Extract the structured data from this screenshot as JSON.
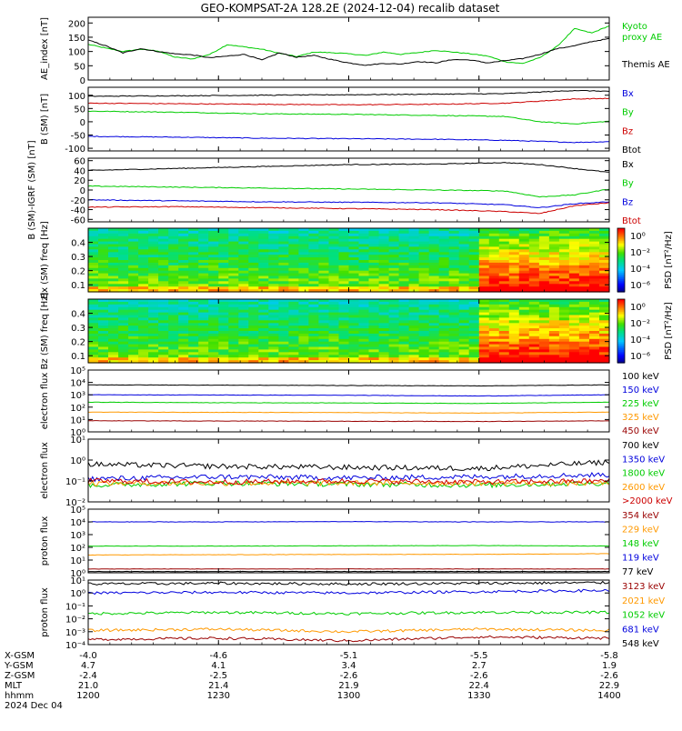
{
  "title": "GEO-KOMPSAT-2A 128.2E (2024-12-04) recalib dataset",
  "colors": {
    "black": "#000000",
    "red": "#cc0000",
    "green": "#00cc00",
    "blue": "#0000dd",
    "orange": "#ff9900",
    "darkred": "#990000",
    "cyan": "#00aaaa"
  },
  "chart_data": [
    {
      "type": "line",
      "ylabel": "AE_index [nT]",
      "ylim": [
        0,
        220
      ],
      "yticks": [
        "200",
        "150",
        "100",
        "50",
        "0"
      ],
      "ytick_values": [
        200,
        150,
        100,
        50,
        0
      ],
      "log": false,
      "series": [
        {
          "name": "Kyoto proxy AE",
          "color": "#00cc00",
          "name_lines": [
            "Kyoto",
            "proxy AE"
          ],
          "x": [
            0,
            4,
            8,
            12,
            16,
            20,
            24,
            28,
            32,
            36,
            40,
            44,
            48,
            52,
            56,
            60,
            64,
            68,
            72,
            76,
            80,
            84,
            88,
            92,
            96,
            100,
            104,
            108,
            112,
            116,
            120
          ],
          "values": [
            125,
            112,
            100,
            108,
            102,
            80,
            74,
            90,
            124,
            116,
            108,
            94,
            82,
            98,
            96,
            92,
            86,
            98,
            90,
            96,
            104,
            98,
            92,
            84,
            64,
            58,
            78,
            118,
            180,
            165,
            190
          ]
        },
        {
          "name": "Themis AE",
          "color": "#000000",
          "name_lines": [
            "Themis AE"
          ],
          "x": [
            0,
            4,
            8,
            12,
            16,
            20,
            24,
            28,
            32,
            36,
            40,
            44,
            48,
            52,
            56,
            60,
            64,
            68,
            72,
            76,
            80,
            84,
            88,
            92,
            96,
            100,
            104,
            108,
            112,
            116,
            120
          ],
          "values": [
            140,
            120,
            95,
            110,
            100,
            92,
            88,
            78,
            84,
            90,
            70,
            95,
            80,
            86,
            72,
            60,
            52,
            58,
            56,
            65,
            60,
            72,
            70,
            60,
            68,
            75,
            90,
            110,
            120,
            135,
            145
          ]
        }
      ]
    },
    {
      "type": "line",
      "ylabel": "B (SM) [nT]",
      "ylim": [
        -110,
        130
      ],
      "yticks": [
        "100",
        "50",
        "0",
        "-50",
        "-100"
      ],
      "ytick_values": [
        100,
        50,
        0,
        -50,
        -100
      ],
      "log": false,
      "series": [
        {
          "name": "Bx",
          "color": "#0000dd",
          "x": [
            0,
            20,
            40,
            60,
            80,
            96,
            104,
            112,
            120
          ],
          "values": [
            -55,
            -58,
            -62,
            -64,
            -66,
            -70,
            -74,
            -78,
            -75
          ]
        },
        {
          "name": "By",
          "color": "#00cc00",
          "x": [
            0,
            20,
            40,
            60,
            80,
            96,
            104,
            112,
            120
          ],
          "values": [
            40,
            36,
            30,
            28,
            24,
            20,
            0,
            -8,
            2
          ]
        },
        {
          "name": "Bz",
          "color": "#cc0000",
          "x": [
            0,
            20,
            40,
            60,
            80,
            96,
            104,
            112,
            120
          ],
          "values": [
            70,
            68,
            66,
            64,
            66,
            70,
            78,
            86,
            88
          ]
        },
        {
          "name": "Btot",
          "color": "#000000",
          "x": [
            0,
            20,
            40,
            60,
            80,
            96,
            104,
            112,
            120
          ],
          "values": [
            96,
            98,
            100,
            102,
            104,
            106,
            112,
            118,
            115
          ]
        }
      ]
    },
    {
      "type": "line",
      "ylabel": "B (SM)-IGRF (SM) [nT]",
      "ylim": [
        -65,
        65
      ],
      "yticks": [
        "60",
        "40",
        "20",
        "0",
        "-20",
        "-40",
        "-60"
      ],
      "ytick_values": [
        60,
        40,
        20,
        0,
        -20,
        -40,
        -60
      ],
      "log": false,
      "series": [
        {
          "name": "Bx",
          "color": "#000000",
          "x": [
            0,
            20,
            40,
            60,
            80,
            96,
            104,
            112,
            120
          ],
          "values": [
            40,
            44,
            48,
            52,
            53,
            56,
            52,
            44,
            36
          ]
        },
        {
          "name": "By",
          "color": "#00cc00",
          "x": [
            0,
            20,
            40,
            60,
            80,
            96,
            104,
            112,
            120
          ],
          "values": [
            8,
            6,
            4,
            2,
            0,
            -2,
            -14,
            -10,
            2
          ]
        },
        {
          "name": "Bz",
          "color": "#0000dd",
          "x": [
            0,
            20,
            40,
            60,
            80,
            96,
            104,
            112,
            120
          ],
          "values": [
            -20,
            -22,
            -24,
            -25,
            -26,
            -30,
            -36,
            -28,
            -24
          ]
        },
        {
          "name": "Btot",
          "color": "#cc0000",
          "x": [
            0,
            20,
            40,
            60,
            80,
            96,
            104,
            112,
            120
          ],
          "values": [
            -35,
            -34,
            -36,
            -38,
            -40,
            -44,
            -48,
            -32,
            -26
          ]
        }
      ]
    },
    {
      "type": "heatmap",
      "ylabel": "Bx (SM) freq [Hz]",
      "yticks": [
        "0.4",
        "0.3",
        "0.2",
        "0.1"
      ],
      "ytick_values": [
        0.4,
        0.3,
        0.2,
        0.1
      ],
      "ylim": [
        0.05,
        0.5
      ],
      "colorbar_label": "PSD [nT²/Hz]",
      "colorbar_ticks": [
        "10⁰",
        "10⁻²",
        "10⁻⁴",
        "10⁻⁶"
      ]
    },
    {
      "type": "heatmap",
      "ylabel": "Bz (SM) freq [Hz]",
      "yticks": [
        "0.4",
        "0.3",
        "0.2",
        "0.1"
      ],
      "ytick_values": [
        0.4,
        0.3,
        0.2,
        0.1
      ],
      "ylim": [
        0.05,
        0.5
      ],
      "colorbar_label": "PSD [nT²/Hz]",
      "colorbar_ticks": [
        "10⁰",
        "10⁻²",
        "10⁻⁴",
        "10⁻⁶"
      ]
    },
    {
      "type": "line",
      "ylabel": "electron flux",
      "log": true,
      "ylim_log": [
        0,
        5
      ],
      "yticks": [
        "10⁵",
        "10⁴",
        "10³",
        "10²",
        "10¹",
        "10⁰"
      ],
      "ytick_values": [
        5,
        4,
        3,
        2,
        1,
        0
      ],
      "series": [
        {
          "name": "100 keV",
          "color": "#000000",
          "x": [
            0,
            30,
            60,
            90,
            120
          ],
          "values": [
            3.8,
            3.78,
            3.75,
            3.72,
            3.8
          ]
        },
        {
          "name": "150 keV",
          "color": "#0000dd",
          "x": [
            0,
            30,
            60,
            90,
            120
          ],
          "values": [
            3.0,
            2.98,
            2.96,
            2.9,
            3.0
          ]
        },
        {
          "name": "225 keV",
          "color": "#00cc00",
          "x": [
            0,
            30,
            60,
            90,
            120
          ],
          "values": [
            2.4,
            2.36,
            2.34,
            2.3,
            2.4
          ]
        },
        {
          "name": "325 keV",
          "color": "#ff9900",
          "x": [
            0,
            30,
            60,
            90,
            120
          ],
          "values": [
            1.6,
            1.58,
            1.56,
            1.52,
            1.6
          ]
        },
        {
          "name": "450 keV",
          "color": "#990000",
          "x": [
            0,
            30,
            60,
            90,
            120
          ],
          "values": [
            0.9,
            0.88,
            0.86,
            0.84,
            0.9
          ]
        }
      ]
    },
    {
      "type": "line",
      "ylabel": "electron flux",
      "log": true,
      "ylim_log": [
        -2,
        1
      ],
      "yticks": [
        "10¹",
        "10⁰",
        "10⁻¹",
        "10⁻²"
      ],
      "ytick_values": [
        1,
        0,
        -1,
        -2
      ],
      "series": [
        {
          "name": "700 keV",
          "color": "#000000",
          "x": [
            0,
            30,
            60,
            90,
            120
          ],
          "values": [
            -0.2,
            -0.3,
            -0.35,
            -0.4,
            -0.1
          ]
        },
        {
          "name": "1350 keV",
          "color": "#0000dd",
          "x": [
            0,
            30,
            60,
            90,
            120
          ],
          "values": [
            -0.9,
            -0.8,
            -0.85,
            -0.8,
            -0.7
          ]
        },
        {
          "name": "1800 keV",
          "color": "#00cc00",
          "x": [
            0,
            30,
            60,
            90,
            120
          ],
          "values": [
            -1.2,
            -1.1,
            -1.15,
            -1.2,
            -1.1
          ]
        },
        {
          "name": "2600 keV",
          "color": "#ff9900",
          "x": [
            0,
            30,
            60,
            90,
            120
          ],
          "values": [
            -1.1,
            -1.1,
            -1.1,
            -1.1,
            -1.1
          ]
        },
        {
          "name": ">2000 keV",
          "color": "#cc0000",
          "x": [
            0,
            30,
            60,
            90,
            120
          ],
          "values": [
            -1.0,
            -1.05,
            -1.0,
            -1.05,
            -1.0
          ]
        }
      ]
    },
    {
      "type": "line",
      "ylabel": "proton flux",
      "log": true,
      "ylim_log": [
        0,
        5
      ],
      "yticks": [
        "10⁵",
        "10⁴",
        "10³",
        "10²",
        "10¹",
        "10⁰"
      ],
      "ytick_values": [
        5,
        4,
        3,
        2,
        1,
        0
      ],
      "series": [
        {
          "name": "354 keV",
          "color": "#990000",
          "x": [
            0,
            30,
            60,
            90,
            120
          ],
          "values": [
            0.3,
            0.3,
            0.3,
            0.3,
            0.3
          ]
        },
        {
          "name": "229 keV",
          "color": "#ff9900",
          "x": [
            0,
            30,
            60,
            90,
            120
          ],
          "values": [
            1.4,
            1.42,
            1.44,
            1.45,
            1.5
          ]
        },
        {
          "name": "148 keV",
          "color": "#00cc00",
          "x": [
            0,
            30,
            60,
            90,
            120
          ],
          "values": [
            2.1,
            2.1,
            2.12,
            2.14,
            2.1
          ]
        },
        {
          "name": "119 keV",
          "color": "#0000dd",
          "x": [
            0,
            30,
            60,
            90,
            120
          ],
          "values": [
            4.0,
            4.0,
            4.02,
            4.0,
            4.0
          ]
        },
        {
          "name": "77 keV",
          "color": "#000000",
          "x": [
            0,
            30,
            60,
            90,
            120
          ],
          "values": [
            0.1,
            0.1,
            0.1,
            0.1,
            0.1
          ]
        }
      ]
    },
    {
      "type": "line",
      "ylabel": "proton flux",
      "log": true,
      "ylim_log": [
        -4,
        1
      ],
      "yticks": [
        "10¹",
        "10⁰",
        "10⁻¹",
        "10⁻²",
        "10⁻³",
        "10⁻⁴"
      ],
      "ytick_values": [
        1,
        0,
        -1,
        -2,
        -3,
        -4
      ],
      "series": [
        {
          "name": "3123 keV",
          "color": "#990000",
          "x": [
            0,
            30,
            60,
            90,
            120
          ],
          "values": [
            -3.6,
            -3.5,
            -3.7,
            -3.4,
            -3.5
          ]
        },
        {
          "name": "2021 keV",
          "color": "#ff9900",
          "x": [
            0,
            30,
            60,
            90,
            120
          ],
          "values": [
            -2.9,
            -2.8,
            -3.0,
            -2.8,
            -2.9
          ]
        },
        {
          "name": "1052 keV",
          "color": "#00cc00",
          "x": [
            0,
            30,
            60,
            90,
            120
          ],
          "values": [
            -1.6,
            -1.5,
            -1.6,
            -1.5,
            -1.5
          ]
        },
        {
          "name": "681 keV",
          "color": "#0000dd",
          "x": [
            0,
            30,
            60,
            90,
            120
          ],
          "values": [
            0.0,
            0.05,
            0.0,
            0.1,
            0.2
          ]
        },
        {
          "name": "548 keV",
          "color": "#000000",
          "x": [
            0,
            30,
            60,
            90,
            120
          ],
          "values": [
            0.7,
            0.75,
            0.7,
            0.75,
            0.8
          ]
        }
      ]
    }
  ],
  "xaxis": {
    "row_labels": [
      "X-GSM",
      "Y-GSM",
      "Z-GSM",
      "MLT",
      "hhmm",
      "2024 Dec 04"
    ],
    "columns": [
      {
        "x": 0,
        "values": [
          "-4.0",
          "4.7",
          "-2.4",
          "21.0",
          "1200"
        ]
      },
      {
        "x": 30,
        "values": [
          "-4.6",
          "4.1",
          "-2.5",
          "21.4",
          "1230"
        ]
      },
      {
        "x": 60,
        "values": [
          "-5.1",
          "3.4",
          "-2.6",
          "21.9",
          "1300"
        ]
      },
      {
        "x": 90,
        "values": [
          "-5.5",
          "2.7",
          "-2.6",
          "22.4",
          "1330"
        ]
      },
      {
        "x": 120,
        "values": [
          "-5.8",
          "1.9",
          "-2.6",
          "22.9",
          "1400"
        ]
      }
    ],
    "xlim": [
      0,
      120
    ]
  }
}
